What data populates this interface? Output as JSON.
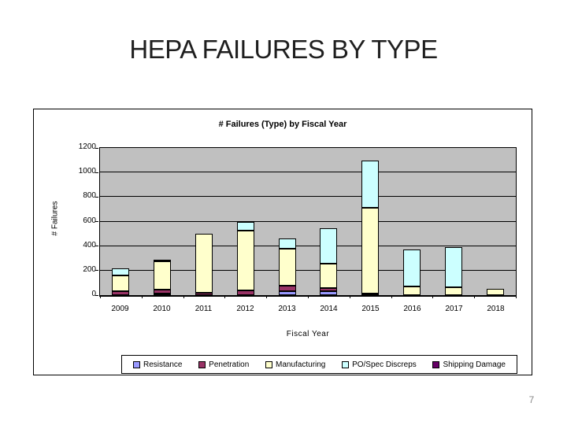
{
  "slide": {
    "title": "HEPA FAILURES BY TYPE",
    "page_number": "7"
  },
  "chart_data": {
    "type": "bar",
    "stacked": true,
    "title": "# Failures (Type) by Fiscal Year",
    "xlabel": "Fiscal Year",
    "ylabel": "# Failures",
    "ylim": [
      0,
      1200
    ],
    "yticks": [
      0,
      200,
      400,
      600,
      800,
      1000,
      1200
    ],
    "grid": true,
    "plot_bg_color": "#C0C0C0",
    "legend_position": "bottom",
    "categories": [
      "2009",
      "2010",
      "2011",
      "2012",
      "2013",
      "2014",
      "2015",
      "2016",
      "2017",
      "2018"
    ],
    "series": [
      {
        "name": "Resistance",
        "color": "#9999FF",
        "values": [
          0,
          15,
          0,
          0,
          35,
          30,
          0,
          0,
          0,
          0
        ]
      },
      {
        "name": "Penetration",
        "color": "#993366",
        "values": [
          30,
          30,
          20,
          40,
          45,
          25,
          15,
          0,
          0,
          0
        ]
      },
      {
        "name": "Manufacturing",
        "color": "#FFFFCC",
        "values": [
          130,
          230,
          480,
          485,
          300,
          205,
          695,
          70,
          65,
          50
        ]
      },
      {
        "name": "PO/Spec Discreps",
        "color": "#CCFFFF",
        "values": [
          60,
          15,
          0,
          70,
          85,
          285,
          390,
          300,
          325,
          0
        ]
      },
      {
        "name": "Shipping Damage",
        "color": "#660066",
        "values": [
          0,
          0,
          0,
          0,
          0,
          0,
          0,
          0,
          0,
          0
        ]
      }
    ],
    "totals": [
      220,
      290,
      500,
      595,
      465,
      545,
      1100,
      370,
      390,
      50
    ]
  }
}
